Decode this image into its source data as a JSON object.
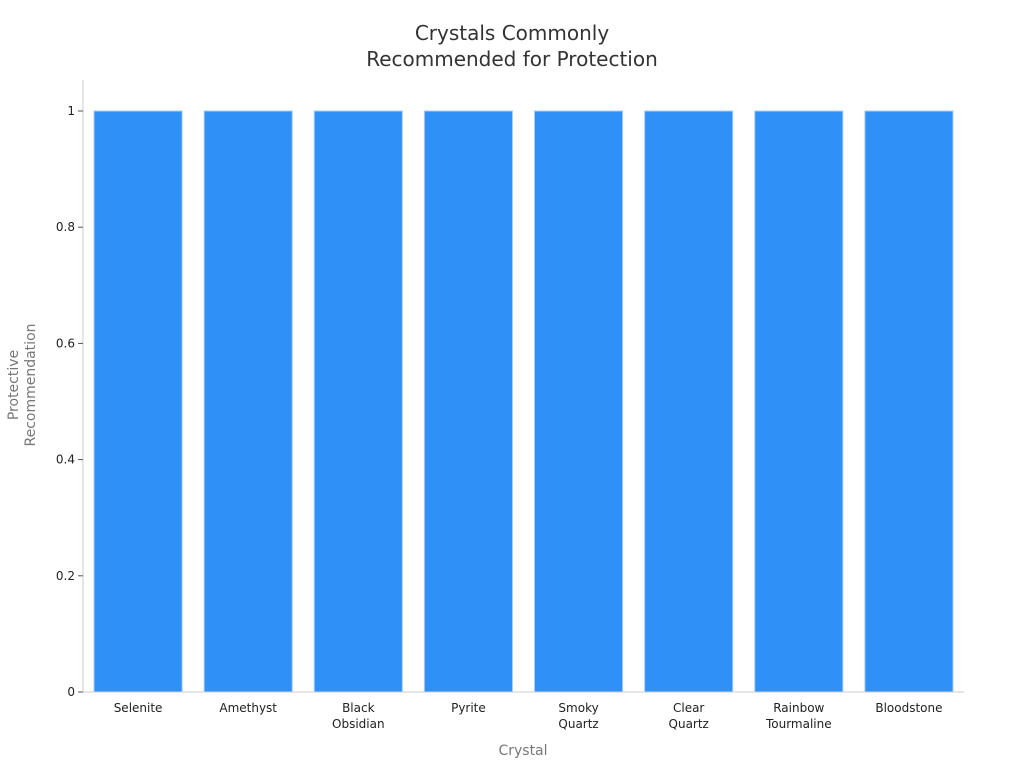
{
  "chart_data": {
    "type": "bar",
    "title": [
      "Crystals Commonly",
      "Recommended for Protection"
    ],
    "xlabel": "Crystal",
    "ylabel": [
      "Protective",
      "Recommendation"
    ],
    "categories": [
      [
        "Selenite"
      ],
      [
        "Amethyst"
      ],
      [
        "Black",
        "Obsidian"
      ],
      [
        "Pyrite"
      ],
      [
        "Smoky",
        "Quartz"
      ],
      [
        "Clear",
        "Quartz"
      ],
      [
        "Rainbow",
        "Tourmaline"
      ],
      [
        "Bloodstone"
      ]
    ],
    "values": [
      1,
      1,
      1,
      1,
      1,
      1,
      1,
      1
    ],
    "ylim": [
      0,
      1
    ],
    "yticks": [
      "0",
      "0.2",
      "0.4",
      "0.6",
      "0.8",
      "1"
    ],
    "grid": false,
    "legend": "none",
    "colors": {
      "bar": "#2f90f7",
      "bar_edge": "#a8cdf7",
      "axis": "#cccccc",
      "tick_text": "#222222",
      "axis_title": "#777777",
      "title": "#333333"
    }
  }
}
